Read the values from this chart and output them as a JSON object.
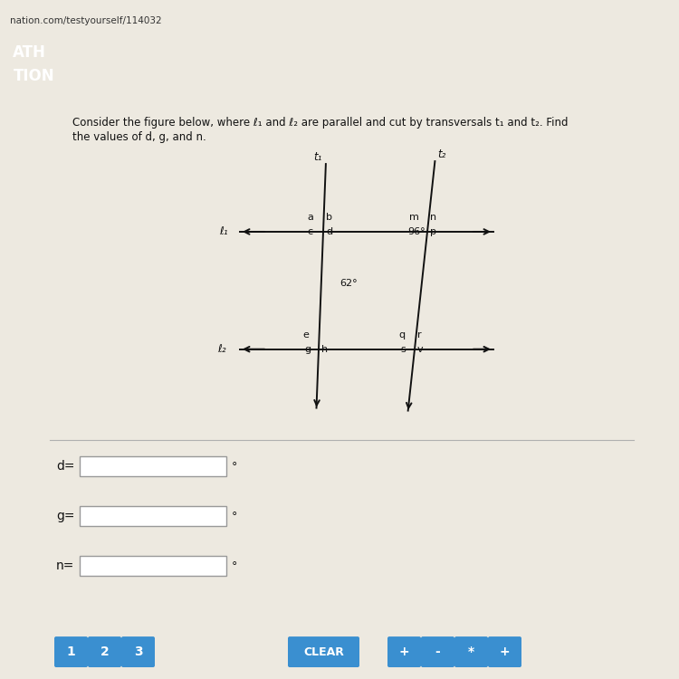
{
  "bg_color": "#ede9e0",
  "header_color": "#2a7ab5",
  "url_text": "nation.com/testyourself/114032",
  "problem_text_line1": "Consider the figure below, where ℓ₁ and ℓ₂ are parallel and cut by transversals t₁ and t₂. Find",
  "problem_text_line2": "the values of d, g, and n.",
  "angle_62": "62°",
  "angle_96": "96°",
  "input_labels": [
    "d=",
    "g=",
    "n="
  ],
  "button_labels": [
    "1",
    "2",
    "3",
    "CLEAR",
    "+",
    "-",
    "*",
    "+"
  ],
  "button_color": "#3a8fd0",
  "input_box_color": "#ffffff",
  "separator_color": "#b0b0b0",
  "line_color": "#111111",
  "text_color": "#111111",
  "header_text1": "ATH",
  "header_text2": "TION"
}
